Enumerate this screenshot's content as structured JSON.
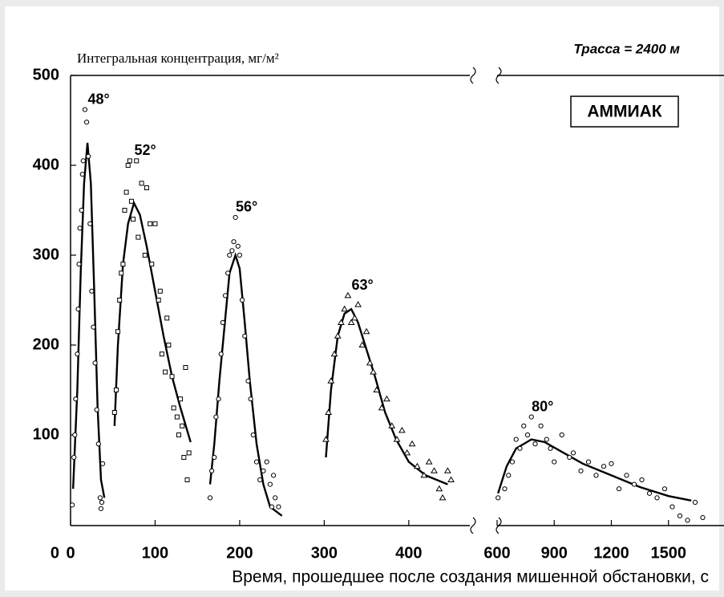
{
  "chart_data": {
    "type": "scatter",
    "y_label": "Интегральная концентрация, мг/м²",
    "x_label": "Время, прошедшее после создания мишенной обстановки, с",
    "annotations": [
      "Трасса = 2400 м",
      "АММИАК"
    ],
    "ylim": [
      0,
      500
    ],
    "yticks": [
      100,
      200,
      300,
      400,
      500
    ],
    "y0_label": "0",
    "x_segments": [
      {
        "xlim": [
          0,
          476
        ],
        "xticks": [
          0,
          100,
          200,
          300,
          400
        ]
      },
      {
        "xlim": [
          600,
          1800
        ],
        "xticks": [
          600,
          900,
          1200,
          1500
        ]
      }
    ],
    "color": "#000000",
    "series": [
      {
        "name": "48°",
        "marker": "circle",
        "curve": {
          "x": [
            3,
            8,
            12,
            16,
            20,
            24,
            28,
            32,
            36,
            40
          ],
          "y": [
            40,
            150,
            280,
            380,
            425,
            380,
            260,
            130,
            50,
            30
          ]
        },
        "points": {
          "x": [
            2,
            4,
            5,
            6,
            8,
            9,
            10,
            11,
            13,
            14,
            15,
            17,
            19,
            21,
            23,
            25,
            27,
            29,
            31,
            33,
            35,
            37,
            38,
            36
          ],
          "y": [
            22,
            75,
            100,
            140,
            190,
            240,
            290,
            330,
            350,
            390,
            405,
            462,
            448,
            410,
            335,
            260,
            220,
            180,
            128,
            90,
            30,
            25,
            68,
            18
          ]
        }
      },
      {
        "name": "52°",
        "marker": "square",
        "curve": {
          "x": [
            52,
            56,
            62,
            68,
            75,
            82,
            90,
            100,
            110,
            120,
            130,
            142
          ],
          "y": [
            110,
            200,
            290,
            335,
            358,
            345,
            310,
            260,
            210,
            165,
            130,
            92
          ]
        },
        "points": {
          "x": [
            52,
            54,
            56,
            58,
            60,
            62,
            64,
            66,
            68,
            70,
            72,
            74,
            78,
            80,
            84,
            88,
            90,
            94,
            96,
            100,
            104,
            106,
            108,
            112,
            114,
            116,
            120,
            122,
            126,
            128,
            130,
            134,
            136,
            138,
            140,
            132
          ],
          "y": [
            125,
            150,
            215,
            250,
            280,
            290,
            350,
            370,
            400,
            405,
            360,
            340,
            405,
            320,
            380,
            300,
            375,
            335,
            290,
            335,
            250,
            260,
            190,
            170,
            230,
            200,
            165,
            130,
            120,
            100,
            140,
            75,
            175,
            50,
            80,
            110
          ]
        }
      },
      {
        "name": "56°",
        "marker": "circle",
        "curve": {
          "x": [
            165,
            170,
            176,
            182,
            188,
            195,
            200,
            206,
            212,
            220,
            228,
            236,
            250
          ],
          "y": [
            45,
            90,
            160,
            220,
            280,
            300,
            285,
            225,
            160,
            90,
            45,
            20,
            10
          ]
        },
        "points": {
          "x": [
            165,
            167,
            170,
            172,
            175,
            178,
            180,
            183,
            186,
            188,
            191,
            193,
            195,
            198,
            200,
            203,
            206,
            210,
            213,
            216,
            220,
            224,
            228,
            232,
            236,
            240,
            242,
            246,
            238
          ],
          "y": [
            30,
            60,
            75,
            120,
            140,
            190,
            225,
            255,
            280,
            300,
            305,
            315,
            342,
            310,
            300,
            250,
            210,
            160,
            140,
            100,
            70,
            50,
            60,
            70,
            45,
            55,
            30,
            20,
            20
          ]
        }
      },
      {
        "name": "63°",
        "marker": "triangle",
        "curve": {
          "x": [
            302,
            308,
            316,
            324,
            332,
            340,
            350,
            360,
            372,
            385,
            400,
            420,
            446
          ],
          "y": [
            75,
            150,
            210,
            235,
            240,
            225,
            195,
            165,
            125,
            95,
            70,
            55,
            45
          ]
        },
        "points": {
          "x": [
            302,
            305,
            308,
            312,
            316,
            320,
            324,
            328,
            332,
            336,
            340,
            345,
            350,
            354,
            358,
            362,
            368,
            374,
            380,
            386,
            392,
            398,
            404,
            410,
            418,
            424,
            430,
            436,
            440,
            446,
            450
          ],
          "y": [
            95,
            125,
            160,
            190,
            210,
            225,
            240,
            255,
            225,
            230,
            245,
            200,
            215,
            180,
            170,
            150,
            130,
            140,
            110,
            95,
            105,
            80,
            90,
            65,
            55,
            70,
            60,
            40,
            30,
            60,
            50
          ]
        }
      },
      {
        "name": "80°",
        "marker": "circle",
        "curve": {
          "x": [
            605,
            650,
            700,
            780,
            850,
            950,
            1050,
            1200,
            1350,
            1500,
            1620
          ],
          "y": [
            35,
            65,
            85,
            95,
            92,
            80,
            68,
            55,
            42,
            32,
            27
          ]
        },
        "points": {
          "x": [
            605,
            640,
            660,
            680,
            700,
            720,
            740,
            760,
            780,
            800,
            830,
            860,
            880,
            900,
            940,
            980,
            1000,
            1040,
            1080,
            1120,
            1160,
            1200,
            1240,
            1280,
            1320,
            1360,
            1400,
            1440,
            1480,
            1520,
            1560,
            1600,
            1640,
            1680
          ],
          "y": [
            30,
            40,
            55,
            70,
            95,
            85,
            110,
            100,
            120,
            90,
            110,
            95,
            85,
            70,
            100,
            75,
            80,
            60,
            70,
            55,
            65,
            68,
            40,
            55,
            45,
            50,
            35,
            30,
            40,
            20,
            10,
            5,
            25,
            8
          ]
        }
      }
    ]
  }
}
